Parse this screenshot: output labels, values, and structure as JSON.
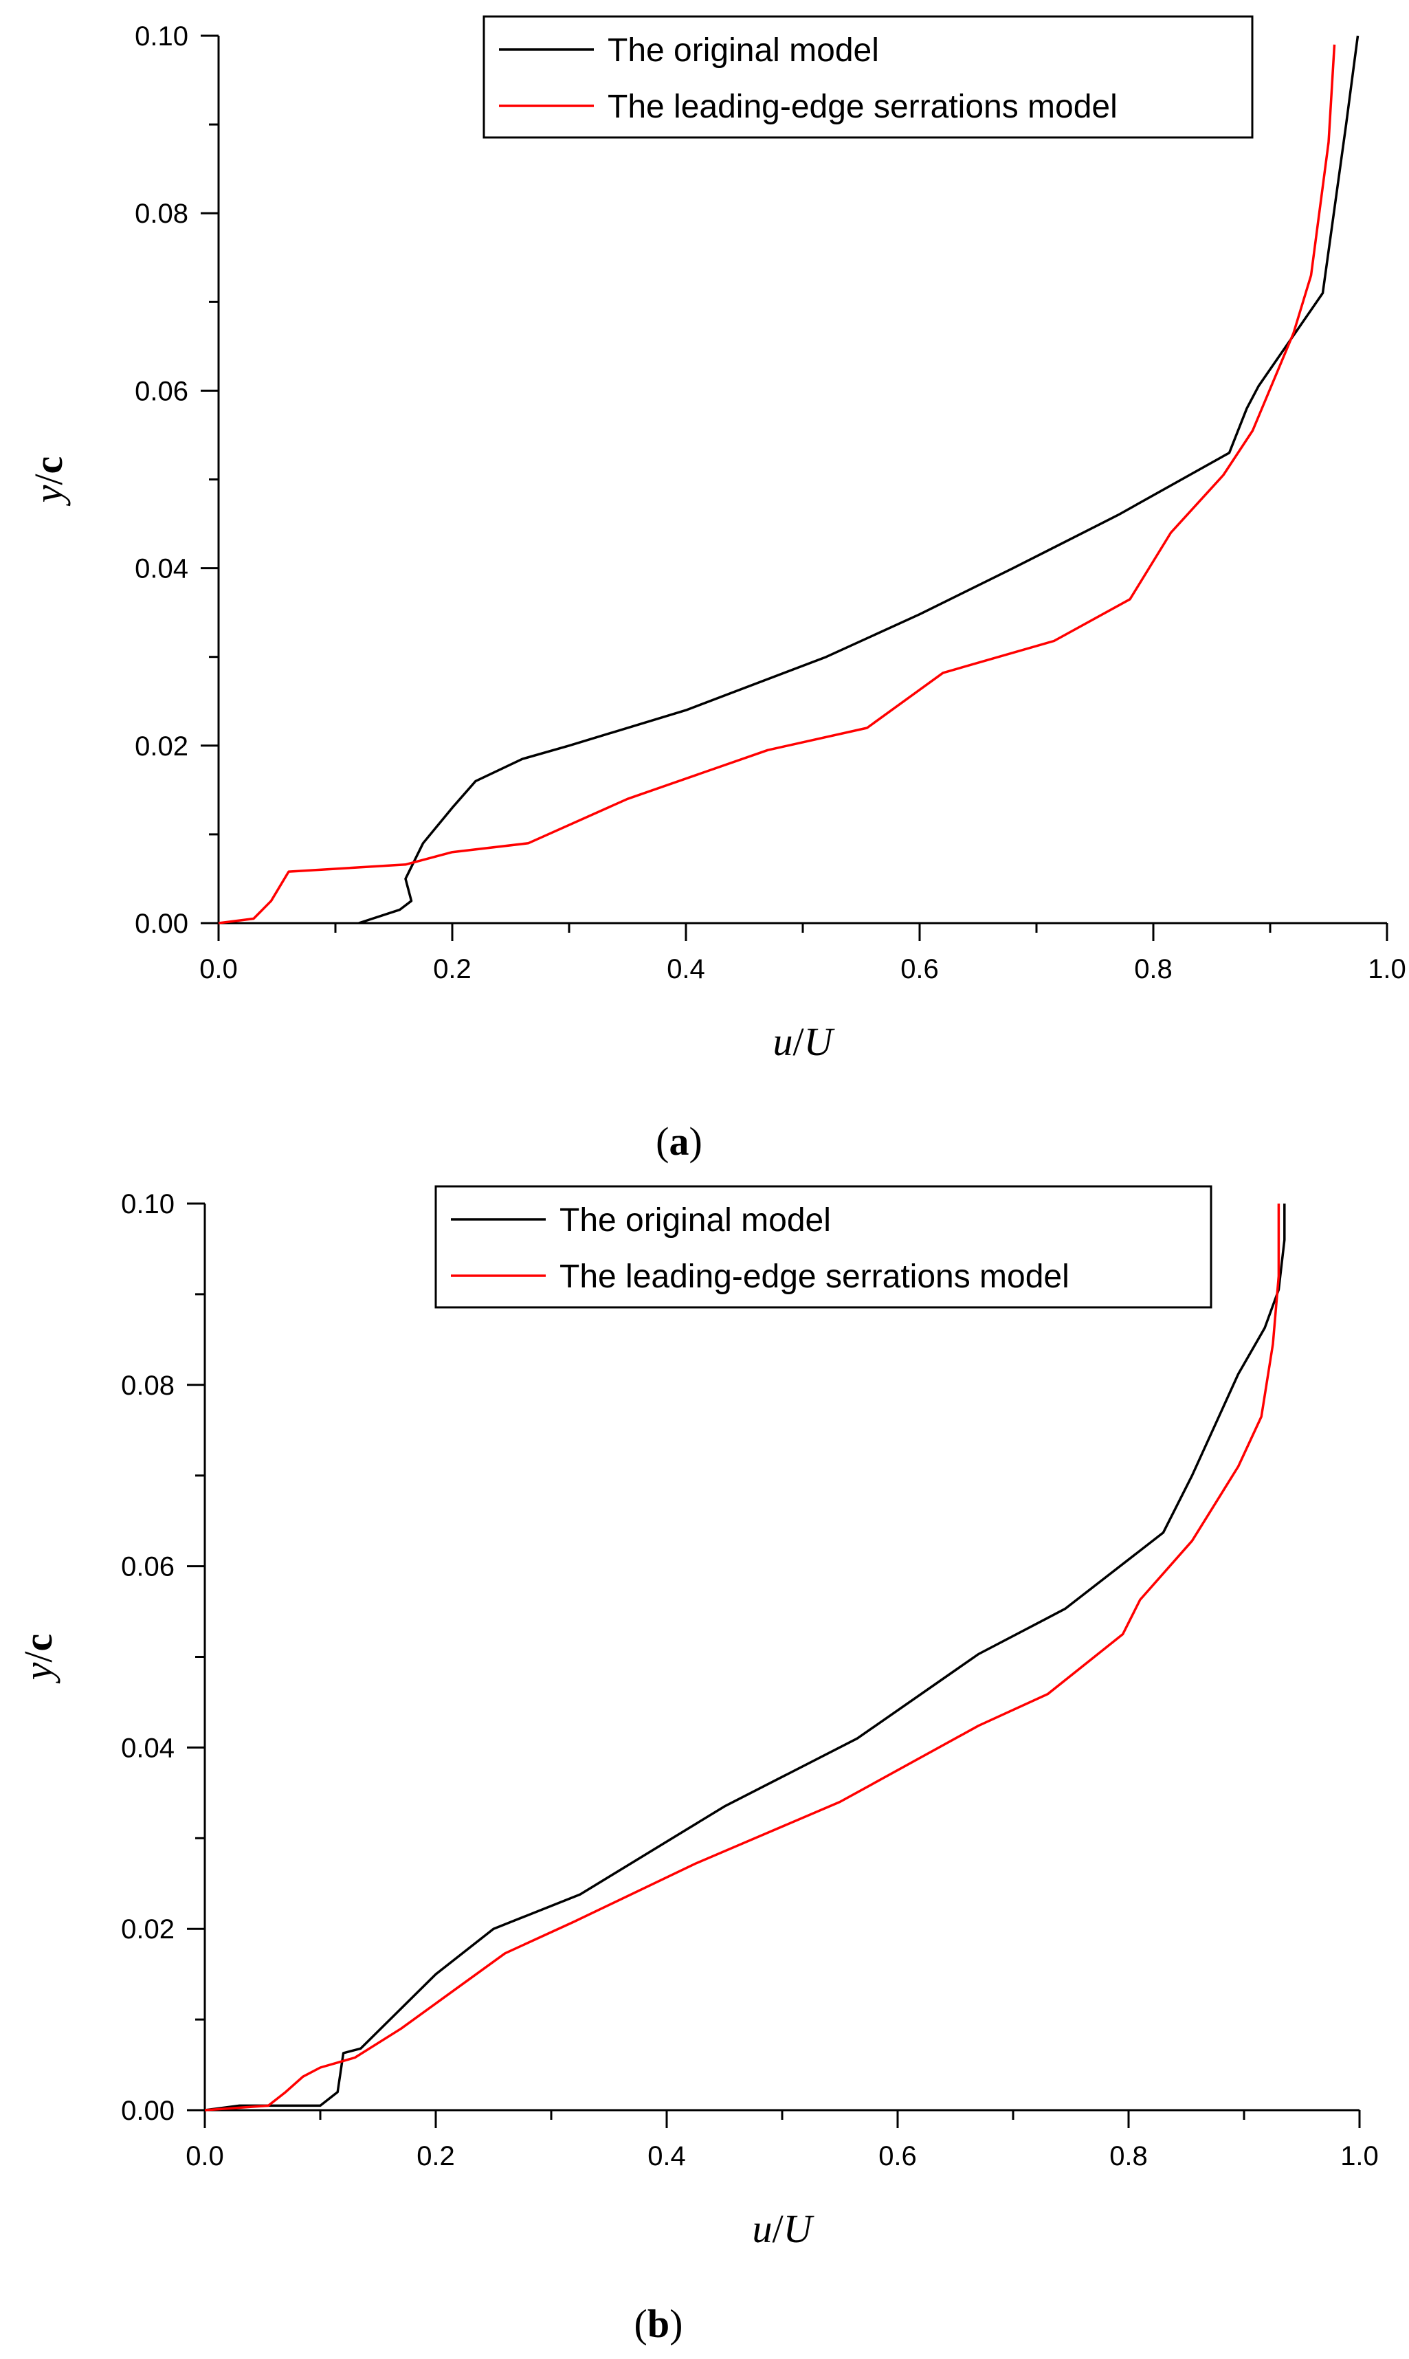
{
  "chart_data": [
    {
      "panel_label": "(a)",
      "panel_letter": "a",
      "type": "line",
      "xlabel": "u/U",
      "xlabel_parts": [
        "u",
        "/",
        "U"
      ],
      "ylabel": "y/c",
      "ylabel_parts": [
        "y",
        "/",
        "c"
      ],
      "xlim": [
        0.0,
        1.0
      ],
      "ylim": [
        0.0,
        0.1
      ],
      "xticks": [
        "0.0",
        "0.2",
        "0.4",
        "0.6",
        "0.8",
        "1.0"
      ],
      "yticks": [
        "0.00",
        "0.02",
        "0.04",
        "0.06",
        "0.08",
        "0.10"
      ],
      "grid": false,
      "legend_position": "top-right",
      "series": [
        {
          "name": "The original model",
          "color": "#000000",
          "points": [
            [
              0.12,
              0.0
            ],
            [
              0.155,
              0.0015
            ],
            [
              0.165,
              0.0025
            ],
            [
              0.16,
              0.005
            ],
            [
              0.175,
              0.009
            ],
            [
              0.2,
              0.013
            ],
            [
              0.22,
              0.016
            ],
            [
              0.26,
              0.0185
            ],
            [
              0.3,
              0.02
            ],
            [
              0.4,
              0.024
            ],
            [
              0.52,
              0.03
            ],
            [
              0.6,
              0.0348
            ],
            [
              0.68,
              0.04
            ],
            [
              0.77,
              0.046
            ],
            [
              0.865,
              0.053
            ],
            [
              0.88,
              0.058
            ],
            [
              0.89,
              0.0605
            ],
            [
              0.945,
              0.071
            ],
            [
              0.965,
              0.09
            ],
            [
              0.975,
              0.1
            ]
          ]
        },
        {
          "name": "The leading-edge serrations model",
          "color": "#ff0000",
          "points": [
            [
              0.0,
              0.0
            ],
            [
              0.03,
              0.0005
            ],
            [
              0.045,
              0.0025
            ],
            [
              0.06,
              0.0058
            ],
            [
              0.16,
              0.0066
            ],
            [
              0.2,
              0.008
            ],
            [
              0.265,
              0.009
            ],
            [
              0.35,
              0.014
            ],
            [
              0.47,
              0.0195
            ],
            [
              0.555,
              0.022
            ],
            [
              0.62,
              0.0282
            ],
            [
              0.715,
              0.0318
            ],
            [
              0.78,
              0.0365
            ],
            [
              0.815,
              0.044
            ],
            [
              0.86,
              0.0505
            ],
            [
              0.885,
              0.0555
            ],
            [
              0.92,
              0.0665
            ],
            [
              0.935,
              0.073
            ],
            [
              0.95,
              0.088
            ],
            [
              0.955,
              0.099
            ]
          ]
        }
      ]
    },
    {
      "panel_label": "(b)",
      "panel_letter": "b",
      "type": "line",
      "xlabel": "u/U",
      "xlabel_parts": [
        "u",
        "/",
        "U"
      ],
      "ylabel": "y/c",
      "ylabel_parts": [
        "y",
        "/",
        "c"
      ],
      "xlim": [
        0.0,
        1.0
      ],
      "ylim": [
        0.0,
        0.1
      ],
      "xticks": [
        "0.0",
        "0.2",
        "0.4",
        "0.6",
        "0.8",
        "1.0"
      ],
      "yticks": [
        "0.00",
        "0.02",
        "0.04",
        "0.06",
        "0.08",
        "0.10"
      ],
      "grid": false,
      "legend_position": "top-right",
      "series": [
        {
          "name": "The original model",
          "color": "#000000",
          "points": [
            [
              0.0,
              0.0
            ],
            [
              0.03,
              0.0005
            ],
            [
              0.1,
              0.0005
            ],
            [
              0.115,
              0.002
            ],
            [
              0.12,
              0.0063
            ],
            [
              0.135,
              0.0068
            ],
            [
              0.2,
              0.015
            ],
            [
              0.25,
              0.02
            ],
            [
              0.325,
              0.0238
            ],
            [
              0.45,
              0.0335
            ],
            [
              0.565,
              0.041
            ],
            [
              0.67,
              0.0503
            ],
            [
              0.745,
              0.0553
            ],
            [
              0.83,
              0.0637
            ],
            [
              0.855,
              0.07
            ],
            [
              0.895,
              0.0812
            ],
            [
              0.918,
              0.0863
            ],
            [
              0.93,
              0.0905
            ],
            [
              0.935,
              0.096
            ],
            [
              0.935,
              0.1
            ]
          ]
        },
        {
          "name": "The leading-edge serrations model",
          "color": "#ff0000",
          "points": [
            [
              0.0,
              0.0
            ],
            [
              0.055,
              0.0005
            ],
            [
              0.07,
              0.002
            ],
            [
              0.085,
              0.0037
            ],
            [
              0.1,
              0.0047
            ],
            [
              0.13,
              0.0058
            ],
            [
              0.17,
              0.009
            ],
            [
              0.26,
              0.0173
            ],
            [
              0.32,
              0.0208
            ],
            [
              0.425,
              0.0272
            ],
            [
              0.55,
              0.034
            ],
            [
              0.67,
              0.0424
            ],
            [
              0.73,
              0.0459
            ],
            [
              0.795,
              0.0525
            ],
            [
              0.81,
              0.0563
            ],
            [
              0.855,
              0.0628
            ],
            [
              0.895,
              0.071
            ],
            [
              0.915,
              0.0765
            ],
            [
              0.925,
              0.0845
            ],
            [
              0.93,
              0.092
            ],
            [
              0.93,
              0.1
            ]
          ]
        }
      ]
    }
  ]
}
